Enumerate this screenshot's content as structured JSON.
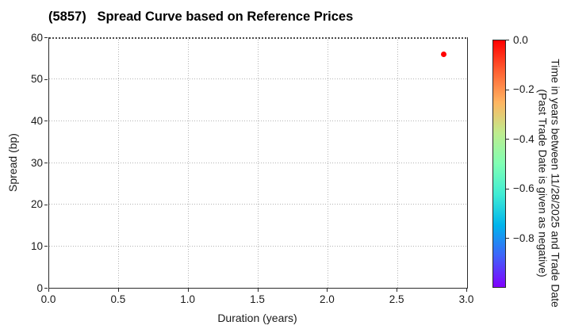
{
  "figure": {
    "background": "#ffffff"
  },
  "chart_data": {
    "type": "scatter",
    "title": "(5857)   Spread Curve based on Reference Prices",
    "xlabel": "Duration (years)",
    "ylabel": "Spread (bp)",
    "xlim": [
      0.0,
      3.0
    ],
    "ylim": [
      0,
      60
    ],
    "grid": true,
    "grid_style": "dotted",
    "xticks": {
      "values": [
        0.0,
        0.5,
        1.0,
        1.5,
        2.0,
        2.5,
        3.0
      ],
      "labels": [
        "0.0",
        "0.5",
        "1.0",
        "1.5",
        "2.0",
        "2.5",
        "3.0"
      ]
    },
    "yticks": {
      "values": [
        0,
        10,
        20,
        30,
        40,
        50,
        60
      ],
      "labels": [
        "0",
        "10",
        "20",
        "30",
        "40",
        "50",
        "60"
      ]
    },
    "points": [
      {
        "x": 2.84,
        "y": 56,
        "color_value": 0.0,
        "color": "#ff0000"
      }
    ],
    "colorbar": {
      "label_line1": "Time in years between 11/28/2025 and Trade Date",
      "label_line2": "(Past Trade Date is given as negative)",
      "range_top": 0.0,
      "range_bottom": -1.0,
      "ticks": {
        "values": [
          0.0,
          -0.2,
          -0.4,
          -0.6,
          -0.8
        ],
        "labels": [
          "0.0",
          "−0.2",
          "−0.4",
          "−0.6",
          "−0.8"
        ]
      },
      "colormap": "rainbow",
      "gradient_stops": [
        "#ff0000",
        "#ff6132",
        "#ffb461",
        "#bfec8e",
        "#80ffb4",
        "#40ecd4",
        "#00b4ec",
        "#4062fa",
        "#8000ff"
      ]
    }
  }
}
